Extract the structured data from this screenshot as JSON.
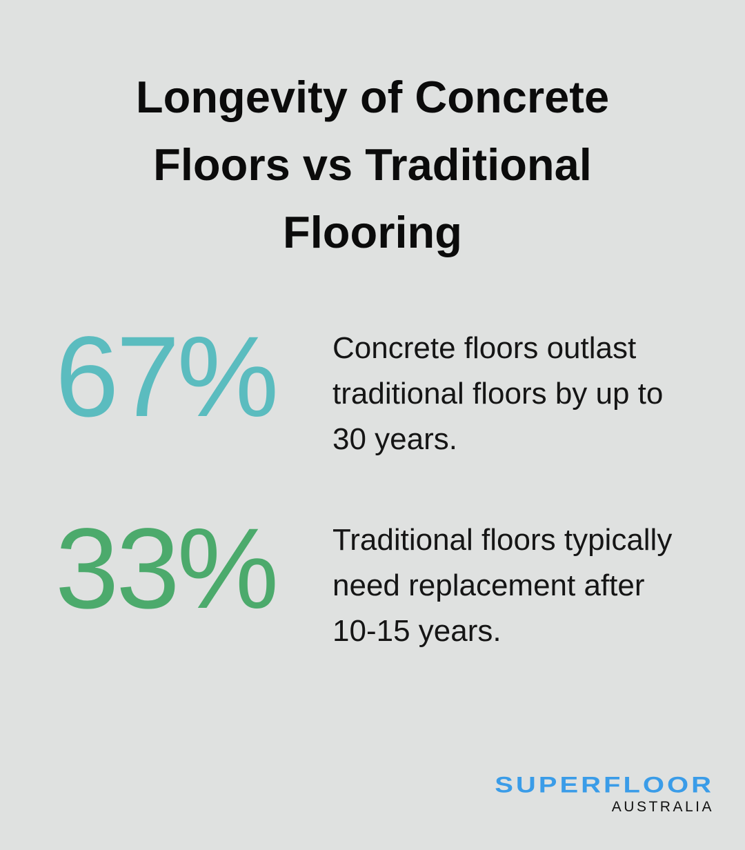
{
  "title": "Longevity of Concrete Floors vs Traditional Flooring",
  "colors": {
    "background": "#dfe1e0",
    "stat1": "#5bbcbf",
    "stat2": "#4caa6c",
    "logo": "#3a9ce8"
  },
  "stats": [
    {
      "value": "67%",
      "text": "Concrete floors outlast traditional floors by up to 30 years."
    },
    {
      "value": "33%",
      "text": "Traditional floors typically need replacement after 10-15 years."
    }
  ],
  "logo": {
    "main": "SUPERFLOOR",
    "sub": "AUSTRALIA"
  }
}
